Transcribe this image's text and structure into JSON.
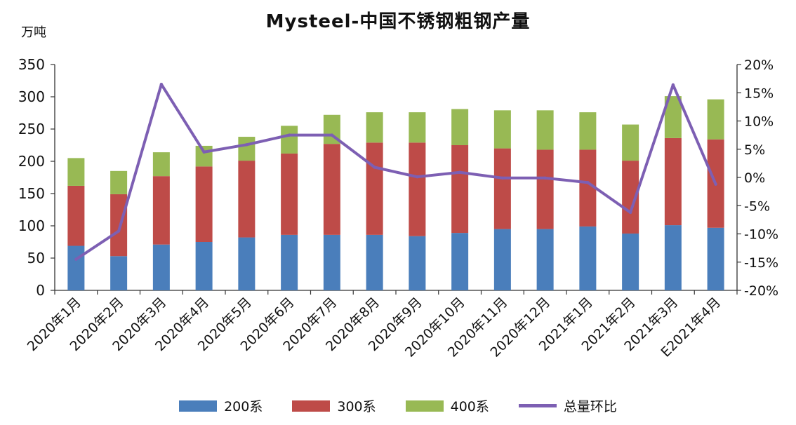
{
  "chart_data": {
    "type": "bar",
    "stacked": true,
    "title": "Mysteel-中国不锈钢粗钢产量",
    "unit_label": "万吨",
    "categories": [
      "2020年1月",
      "2020年2月",
      "2020年3月",
      "2020年4月",
      "2020年5月",
      "2020年6月",
      "2020年7月",
      "2020年8月",
      "2020年9月",
      "2020年10月",
      "2020年11月",
      "2020年12月",
      "2021年1月",
      "2021年2月",
      "2021年3月",
      "E2021年4月"
    ],
    "series": [
      {
        "name": "200系",
        "axis": "left",
        "color": "#4a7ebb",
        "values": [
          69,
          53,
          71,
          75,
          82,
          86,
          86,
          86,
          84,
          89,
          95,
          95,
          99,
          88,
          101,
          97
        ]
      },
      {
        "name": "300系",
        "axis": "left",
        "color": "#be4b48",
        "values": [
          93,
          96,
          106,
          117,
          119,
          126,
          141,
          143,
          145,
          136,
          125,
          123,
          119,
          113,
          135,
          137
        ]
      },
      {
        "name": "400系",
        "axis": "left",
        "color": "#98b954",
        "values": [
          43,
          36,
          37,
          32,
          37,
          43,
          45,
          47,
          47,
          56,
          59,
          61,
          58,
          56,
          65,
          62
        ]
      }
    ],
    "line_series": {
      "name": "总量环比",
      "axis": "right",
      "color": "#7d5fb3",
      "values": [
        -14.5,
        -9.5,
        16.5,
        4.5,
        5.8,
        7.5,
        7.5,
        1.8,
        0.1,
        0.9,
        -0.1,
        -0.1,
        -0.9,
        -6.2,
        16.4,
        -1.2
      ]
    },
    "y_left": {
      "min": 0,
      "max": 350,
      "step": 50,
      "tick_labels": [
        "0",
        "50",
        "100",
        "150",
        "200",
        "250",
        "300",
        "350"
      ]
    },
    "y_right": {
      "min": -20,
      "max": 20,
      "step": 5,
      "tick_labels": [
        "-20%",
        "-15%",
        "-10%",
        "-5%",
        "0%",
        "5%",
        "10%",
        "15%",
        "20%"
      ]
    },
    "grid": false,
    "legend_position": "bottom"
  },
  "legend": [
    {
      "label": "200系",
      "color": "#4a7ebb",
      "kind": "bar"
    },
    {
      "label": "300系",
      "color": "#be4b48",
      "kind": "bar"
    },
    {
      "label": "400系",
      "color": "#98b954",
      "kind": "bar"
    },
    {
      "label": "总量环比",
      "color": "#7d5fb3",
      "kind": "line"
    }
  ]
}
